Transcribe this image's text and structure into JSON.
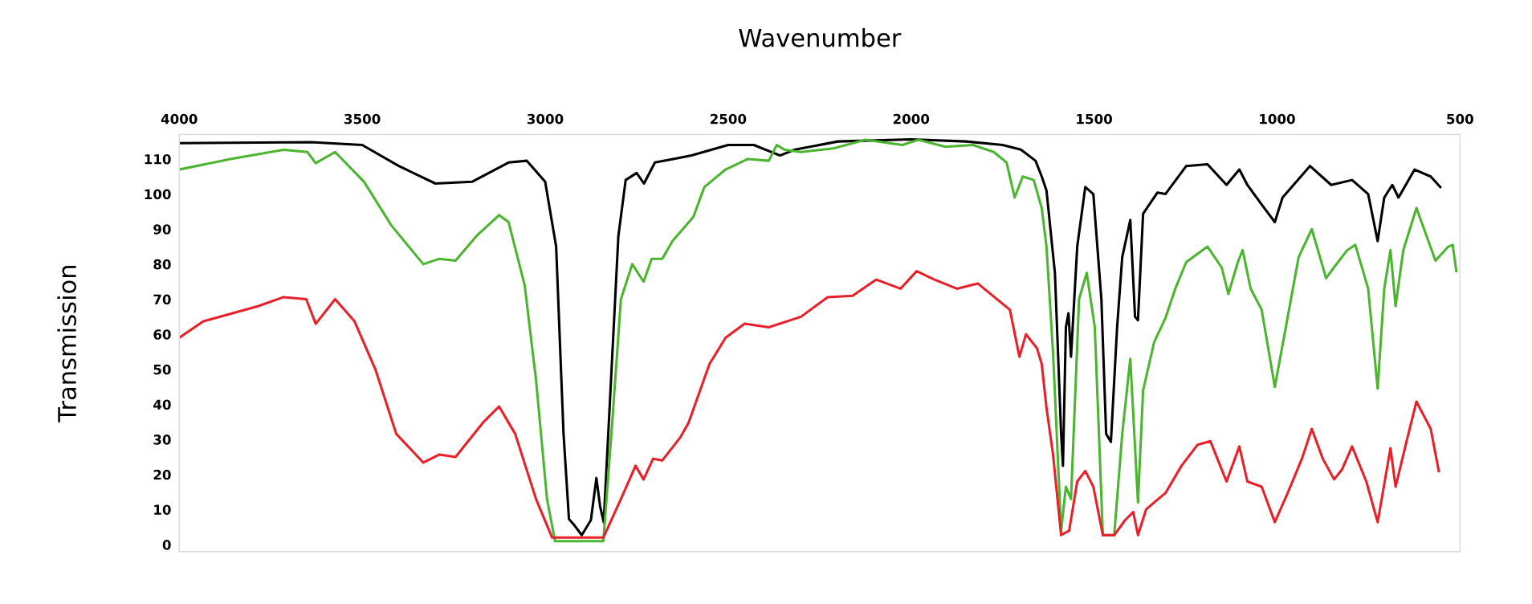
{
  "chart_data": {
    "type": "line",
    "xlabel": "Wavenumber",
    "ylabel": "Transmission",
    "xlim": [
      4000,
      500
    ],
    "ylim": [
      -2,
      117
    ],
    "xticks": [
      4000,
      3500,
      3000,
      2500,
      2000,
      1500,
      1000,
      500
    ],
    "yticks": [
      0,
      10,
      20,
      30,
      40,
      50,
      60,
      70,
      80,
      90,
      100,
      110
    ],
    "grid": false,
    "legend": false,
    "marker": "none",
    "line_style": "solid",
    "series": [
      {
        "color": "#000000",
        "x": [
          4000,
          3640,
          3500,
          3400,
          3300,
          3200,
          3100,
          3050,
          3000,
          2970,
          2950,
          2935,
          2920,
          2900,
          2875,
          2860,
          2850,
          2840,
          2820,
          2800,
          2780,
          2750,
          2730,
          2700,
          2650,
          2600,
          2500,
          2430,
          2358,
          2320,
          2200,
          2000,
          1850,
          1750,
          1700,
          1660,
          1643,
          1630,
          1607,
          1590,
          1585,
          1577,
          1570,
          1563,
          1546,
          1524,
          1502,
          1480,
          1467,
          1454,
          1437,
          1423,
          1401,
          1388,
          1380,
          1366,
          1327,
          1305,
          1248,
          1190,
          1138,
          1103,
          1081,
          1042,
          1006,
          985,
          910,
          852,
          795,
          751,
          725,
          707,
          685,
          668,
          624,
          580,
          554
        ],
        "values": [
          114.5,
          114.8,
          114,
          108,
          103,
          103.5,
          109,
          109.5,
          103.5,
          85,
          32,
          7.3,
          5.5,
          2.7,
          7,
          19,
          11,
          6.4,
          47,
          88,
          104,
          106,
          103,
          109,
          110,
          111,
          114,
          114,
          111,
          112.6,
          115,
          115.6,
          115,
          114,
          112.7,
          109.5,
          105,
          101,
          77.5,
          31.6,
          22.5,
          62,
          66,
          53.6,
          85,
          102,
          100,
          70,
          31.6,
          29.3,
          62,
          82,
          92.6,
          65,
          64,
          94.4,
          100.4,
          100,
          108,
          108.5,
          102.6,
          107,
          102.6,
          97,
          92,
          99,
          108,
          102.6,
          104,
          100,
          86.6,
          99,
          102.6,
          99,
          107,
          105,
          102
        ]
      },
      {
        "color": "#4cb530",
        "x": [
          4000,
          3860,
          3715,
          3650,
          3627,
          3574,
          3495,
          3420,
          3333,
          3290,
          3245,
          3188,
          3126,
          3100,
          3056,
          3025,
          2995,
          2973,
          2841,
          2819,
          2793,
          2762,
          2731,
          2709,
          2680,
          2652,
          2595,
          2565,
          2507,
          2446,
          2389,
          2367,
          2345,
          2301,
          2213,
          2125,
          2024,
          1980,
          1906,
          1831,
          1774,
          1739,
          1717,
          1695,
          1665,
          1643,
          1630,
          1612,
          1590,
          1577,
          1563,
          1541,
          1520,
          1498,
          1476,
          1445,
          1423,
          1401,
          1390,
          1380,
          1366,
          1336,
          1305,
          1278,
          1248,
          1190,
          1151,
          1133,
          1107,
          1094,
          1072,
          1042,
          1006,
          976,
          941,
          905,
          866,
          845,
          808,
          786,
          751,
          725,
          707,
          690,
          676,
          655,
          619,
          567,
          532,
          520,
          510
        ],
        "values": [
          107,
          110,
          112.6,
          112,
          108.8,
          112,
          103.5,
          91,
          80,
          81.5,
          81,
          88,
          94,
          92,
          74,
          47,
          13,
          1,
          1,
          31.6,
          70,
          80,
          75,
          81.5,
          81.5,
          86.6,
          93.5,
          102,
          107,
          110,
          109.5,
          114,
          112.6,
          112,
          113,
          115.5,
          114,
          115.5,
          113.5,
          114,
          112,
          109,
          99,
          105,
          104,
          96,
          85,
          54.5,
          4,
          16.5,
          13,
          70,
          77.5,
          62,
          2.7,
          2.7,
          31.6,
          53,
          31.6,
          12,
          44,
          57.7,
          64.6,
          73,
          80.6,
          85,
          79,
          71.5,
          80.6,
          84,
          73,
          67,
          45,
          62,
          82,
          90,
          76,
          79,
          84,
          85.5,
          73,
          44.5,
          73,
          84,
          68,
          84,
          96,
          81,
          85,
          85.5,
          78
        ]
      },
      {
        "color": "#e8202a",
        "x": [
          4000,
          3934,
          3785,
          3715,
          3653,
          3627,
          3574,
          3521,
          3464,
          3407,
          3333,
          3289,
          3245,
          3170,
          3126,
          3082,
          3025,
          2981,
          2841,
          2793,
          2753,
          2731,
          2705,
          2680,
          2630,
          2608,
          2551,
          2507,
          2455,
          2389,
          2301,
          2228,
          2160,
          2095,
          2029,
          1985,
          1936,
          1875,
          1818,
          1730,
          1704,
          1686,
          1656,
          1643,
          1630,
          1612,
          1590,
          1568,
          1546,
          1524,
          1502,
          1476,
          1445,
          1415,
          1393,
          1380,
          1358,
          1336,
          1305,
          1261,
          1217,
          1182,
          1138,
          1103,
          1081,
          1042,
          1006,
          971,
          932,
          905,
          875,
          844,
          822,
          795,
          756,
          725,
          690,
          676,
          646,
          619,
          580,
          558
        ],
        "values": [
          59,
          63.7,
          68,
          70.6,
          70,
          63,
          70,
          63.7,
          50,
          31.6,
          23.4,
          25.7,
          25,
          34.8,
          39.4,
          31.6,
          13,
          2,
          2,
          13,
          22.5,
          18.6,
          24.5,
          24,
          30.7,
          34.8,
          51.5,
          59,
          63,
          62,
          65,
          70.6,
          71,
          75.6,
          73,
          78,
          75.6,
          73,
          74.5,
          67,
          53.6,
          60,
          56,
          51.5,
          39,
          25.6,
          2.7,
          4,
          18,
          21,
          16.5,
          2.7,
          2.7,
          7,
          9.3,
          2.7,
          10,
          12,
          14.7,
          22.5,
          28.5,
          29.5,
          18,
          28,
          18,
          16.5,
          6.4,
          14.7,
          24.5,
          33,
          24.5,
          18.6,
          21.5,
          28,
          18,
          6.4,
          27.5,
          16.5,
          29.5,
          40.8,
          33,
          21
        ]
      }
    ]
  }
}
